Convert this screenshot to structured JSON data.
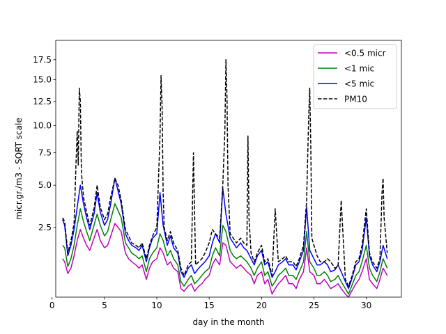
{
  "chart_data": {
    "type": "line",
    "title": "",
    "xlabel": "day in the month",
    "ylabel": "micr.gr./m3 - SQRT scale",
    "yscale": "sqrt",
    "xlim": [
      0.35,
      33.35
    ],
    "ylim": [
      0.25,
      20.1
    ],
    "xticks": [
      0,
      5,
      10,
      15,
      20,
      25,
      30
    ],
    "xtick_labels": [
      "0",
      "5",
      "10",
      "15",
      "20",
      "25",
      "30"
    ],
    "yticks": [
      2.5,
      5.0,
      7.5,
      10.0,
      12.5,
      15.0,
      17.5
    ],
    "ytick_labels": [
      "2.5",
      "5.0",
      "7.5",
      "10.0",
      "12.5",
      "15.0",
      "17.5"
    ],
    "grid": false,
    "legend_position": "top-right",
    "series": [
      {
        "name": "<0.5 micr",
        "color": "#bf00bf",
        "style": "solid",
        "x": [
          1.0,
          1.2,
          1.5,
          1.8,
          2.1,
          2.4,
          2.7,
          3.0,
          3.3,
          3.6,
          4.0,
          4.3,
          4.6,
          5.0,
          5.3,
          5.6,
          6.0,
          6.3,
          6.6,
          7.0,
          7.3,
          7.6,
          8.0,
          8.3,
          8.6,
          9.0,
          9.3,
          9.6,
          10.0,
          10.3,
          10.6,
          11.0,
          11.3,
          11.6,
          12.0,
          12.3,
          12.6,
          13.0,
          13.3,
          13.6,
          14.0,
          14.3,
          14.6,
          15.0,
          15.3,
          15.6,
          16.0,
          16.3,
          16.6,
          17.0,
          17.3,
          17.6,
          18.0,
          18.3,
          18.6,
          19.0,
          19.3,
          19.6,
          20.0,
          20.3,
          20.6,
          21.0,
          21.3,
          21.6,
          22.0,
          22.3,
          22.6,
          23.0,
          23.3,
          23.6,
          24.0,
          24.3,
          24.6,
          25.0,
          25.3,
          25.6,
          26.0,
          26.3,
          26.6,
          27.0,
          27.3,
          27.6,
          28.0,
          28.3,
          28.6,
          29.0,
          29.3,
          29.6,
          30.0,
          30.3,
          30.6,
          31.0,
          31.3,
          31.6,
          32.0
        ],
        "values": [
          1.2,
          1.1,
          0.75,
          0.9,
          1.3,
          1.9,
          2.4,
          2.0,
          1.7,
          1.5,
          2.0,
          2.4,
          1.9,
          1.6,
          1.7,
          2.1,
          2.7,
          2.5,
          2.3,
          1.4,
          1.2,
          1.1,
          1.0,
          0.9,
          1.0,
          0.6,
          0.9,
          1.1,
          1.2,
          1.6,
          1.4,
          1.0,
          1.1,
          0.9,
          0.8,
          0.4,
          0.35,
          0.45,
          0.5,
          0.35,
          0.45,
          0.5,
          0.6,
          0.7,
          1.0,
          1.2,
          1.0,
          1.8,
          1.7,
          1.1,
          1.0,
          0.9,
          1.0,
          0.9,
          0.8,
          0.7,
          0.5,
          0.7,
          0.8,
          0.5,
          0.6,
          0.3,
          0.4,
          0.5,
          0.6,
          0.7,
          0.5,
          0.5,
          0.4,
          0.6,
          0.8,
          1.6,
          0.8,
          0.7,
          0.5,
          0.5,
          0.6,
          0.5,
          0.4,
          0.45,
          0.5,
          0.4,
          0.3,
          0.25,
          0.35,
          0.5,
          0.6,
          0.8,
          1.2,
          0.6,
          0.5,
          0.4,
          0.6,
          0.9,
          0.7
        ]
      },
      {
        "name": "<1 mic",
        "color": "#008000",
        "style": "solid",
        "x": [
          1.0,
          1.2,
          1.5,
          1.8,
          2.1,
          2.4,
          2.7,
          3.0,
          3.3,
          3.6,
          4.0,
          4.3,
          4.6,
          5.0,
          5.3,
          5.6,
          6.0,
          6.3,
          6.6,
          7.0,
          7.3,
          7.6,
          8.0,
          8.3,
          8.6,
          9.0,
          9.3,
          9.6,
          10.0,
          10.3,
          10.6,
          11.0,
          11.3,
          11.6,
          12.0,
          12.3,
          12.6,
          13.0,
          13.3,
          13.6,
          14.0,
          14.3,
          14.6,
          15.0,
          15.3,
          15.6,
          16.0,
          16.3,
          16.6,
          17.0,
          17.3,
          17.6,
          18.0,
          18.3,
          18.6,
          19.0,
          19.3,
          19.6,
          20.0,
          20.3,
          20.6,
          21.0,
          21.3,
          21.6,
          22.0,
          22.3,
          22.6,
          23.0,
          23.3,
          23.6,
          24.0,
          24.3,
          24.6,
          25.0,
          25.3,
          25.6,
          26.0,
          26.3,
          26.6,
          27.0,
          27.3,
          27.6,
          28.0,
          28.3,
          28.6,
          29.0,
          29.3,
          29.6,
          30.0,
          30.3,
          30.6,
          31.0,
          31.3,
          31.6,
          32.0
        ],
        "values": [
          1.7,
          1.6,
          0.95,
          1.2,
          1.7,
          2.6,
          3.5,
          2.8,
          2.3,
          1.9,
          2.6,
          3.2,
          2.6,
          2.1,
          2.3,
          2.9,
          3.8,
          3.4,
          3.0,
          1.8,
          1.6,
          1.4,
          1.3,
          1.2,
          1.3,
          0.8,
          1.2,
          1.4,
          1.6,
          2.2,
          1.9,
          1.3,
          1.5,
          1.2,
          1.0,
          0.55,
          0.45,
          0.6,
          0.7,
          0.5,
          0.6,
          0.7,
          0.8,
          0.9,
          1.3,
          1.6,
          1.3,
          2.6,
          2.3,
          1.5,
          1.3,
          1.2,
          1.3,
          1.2,
          1.1,
          0.9,
          0.7,
          0.9,
          1.1,
          0.7,
          0.8,
          0.45,
          0.55,
          0.7,
          0.8,
          0.9,
          0.7,
          0.7,
          0.6,
          0.8,
          1.1,
          2.3,
          1.1,
          0.9,
          0.7,
          0.7,
          0.8,
          0.7,
          0.55,
          0.6,
          0.7,
          0.55,
          0.4,
          0.3,
          0.45,
          0.7,
          0.8,
          1.1,
          1.7,
          0.9,
          0.7,
          0.55,
          0.8,
          1.2,
          0.9
        ]
      },
      {
        "name": "<5 mic",
        "color": "#0000ff",
        "style": "solid",
        "x": [
          1.0,
          1.2,
          1.5,
          1.8,
          2.1,
          2.4,
          2.7,
          3.0,
          3.3,
          3.6,
          4.0,
          4.3,
          4.6,
          5.0,
          5.3,
          5.6,
          6.0,
          6.3,
          6.6,
          7.0,
          7.3,
          7.6,
          8.0,
          8.3,
          8.6,
          9.0,
          9.3,
          9.6,
          10.0,
          10.3,
          10.6,
          11.0,
          11.3,
          11.6,
          12.0,
          12.3,
          12.6,
          13.0,
          13.3,
          13.6,
          14.0,
          14.3,
          14.6,
          15.0,
          15.3,
          15.6,
          16.0,
          16.3,
          16.6,
          17.0,
          17.3,
          17.6,
          18.0,
          18.3,
          18.6,
          19.0,
          19.3,
          19.6,
          20.0,
          20.3,
          20.6,
          21.0,
          21.3,
          21.6,
          22.0,
          22.3,
          22.6,
          23.0,
          23.3,
          23.6,
          24.0,
          24.3,
          24.6,
          25.0,
          25.3,
          25.6,
          26.0,
          26.3,
          26.6,
          27.0,
          27.3,
          27.6,
          28.0,
          28.3,
          28.6,
          29.0,
          29.3,
          29.6,
          30.0,
          30.3,
          30.6,
          31.0,
          31.3,
          31.6,
          32.0
        ],
        "values": [
          2.9,
          2.6,
          1.3,
          1.7,
          2.4,
          3.6,
          5.0,
          3.8,
          3.0,
          2.4,
          3.2,
          4.5,
          3.3,
          2.6,
          2.9,
          3.8,
          5.5,
          4.6,
          3.8,
          2.2,
          1.9,
          1.7,
          1.6,
          1.5,
          1.7,
          1.1,
          1.6,
          2.0,
          2.2,
          4.5,
          2.6,
          1.7,
          2.1,
          1.6,
          1.4,
          0.8,
          0.65,
          0.9,
          1.0,
          0.75,
          0.9,
          1.0,
          1.1,
          1.3,
          1.8,
          2.2,
          1.8,
          4.8,
          3.2,
          2.0,
          1.8,
          1.6,
          1.8,
          1.6,
          1.5,
          1.2,
          1.0,
          1.3,
          1.5,
          1.0,
          1.1,
          0.65,
          0.8,
          1.0,
          1.1,
          1.2,
          1.0,
          1.0,
          0.85,
          1.1,
          1.5,
          3.6,
          1.5,
          1.2,
          1.0,
          1.0,
          1.1,
          1.0,
          0.8,
          0.85,
          1.0,
          0.8,
          0.55,
          0.4,
          0.6,
          1.0,
          1.1,
          1.5,
          3.0,
          1.3,
          1.0,
          0.8,
          1.1,
          1.7,
          1.2
        ]
      },
      {
        "name": "PM10",
        "color": "#000000",
        "style": "dashed",
        "x": [
          1.0,
          1.2,
          1.5,
          1.8,
          2.1,
          2.3,
          2.4,
          2.5,
          2.6,
          2.7,
          2.8,
          3.0,
          3.3,
          3.6,
          4.0,
          4.3,
          4.6,
          5.0,
          5.3,
          5.6,
          6.0,
          6.3,
          6.6,
          7.0,
          7.3,
          7.6,
          8.0,
          8.3,
          8.6,
          9.0,
          9.3,
          9.6,
          10.0,
          10.3,
          10.4,
          10.5,
          10.6,
          10.7,
          11.0,
          11.3,
          11.6,
          12.0,
          12.3,
          12.6,
          13.0,
          13.3,
          13.5,
          13.7,
          14.0,
          14.3,
          14.6,
          15.0,
          15.3,
          15.6,
          16.0,
          16.3,
          16.5,
          16.6,
          16.7,
          16.8,
          17.0,
          17.3,
          17.6,
          18.0,
          18.3,
          18.6,
          18.7,
          18.8,
          19.0,
          19.3,
          19.6,
          20.0,
          20.3,
          20.6,
          21.0,
          21.3,
          21.6,
          22.0,
          22.3,
          22.6,
          23.0,
          23.3,
          23.6,
          24.0,
          24.3,
          24.5,
          24.6,
          24.7,
          24.8,
          25.0,
          25.3,
          25.6,
          26.0,
          26.3,
          26.6,
          27.0,
          27.3,
          27.6,
          28.0,
          28.3,
          28.6,
          29.0,
          29.3,
          29.6,
          30.0,
          30.3,
          30.6,
          31.0,
          31.3,
          31.5,
          31.6,
          31.7,
          32.0
        ],
        "values": [
          3.0,
          2.8,
          1.4,
          1.9,
          2.7,
          7.0,
          9.5,
          6.5,
          14.0,
          12.5,
          6.0,
          4.2,
          3.3,
          2.6,
          3.5,
          5.0,
          3.6,
          2.9,
          3.2,
          4.2,
          5.5,
          5.0,
          4.0,
          2.4,
          2.1,
          1.8,
          1.7,
          1.6,
          1.8,
          1.2,
          1.7,
          2.1,
          2.5,
          9.0,
          15.5,
          12.0,
          4.5,
          2.5,
          1.9,
          2.3,
          1.8,
          1.5,
          0.9,
          0.7,
          1.0,
          1.1,
          7.5,
          1.0,
          1.1,
          1.2,
          1.4,
          1.8,
          2.4,
          2.2,
          2.0,
          5.0,
          9.5,
          17.5,
          13.0,
          5.0,
          2.2,
          2.0,
          1.8,
          2.0,
          1.8,
          1.7,
          9.0,
          3.0,
          1.4,
          1.1,
          1.4,
          1.7,
          1.1,
          1.2,
          0.7,
          3.5,
          1.1,
          1.2,
          1.3,
          1.1,
          1.1,
          0.95,
          1.2,
          1.7,
          4.0,
          11.0,
          14.0,
          8.0,
          2.0,
          1.7,
          1.3,
          1.1,
          1.1,
          1.2,
          1.1,
          0.9,
          0.95,
          4.0,
          0.6,
          0.45,
          0.65,
          1.1,
          1.2,
          1.7,
          3.5,
          1.4,
          1.1,
          0.9,
          1.2,
          4.5,
          5.5,
          3.0,
          1.4
        ]
      }
    ]
  }
}
